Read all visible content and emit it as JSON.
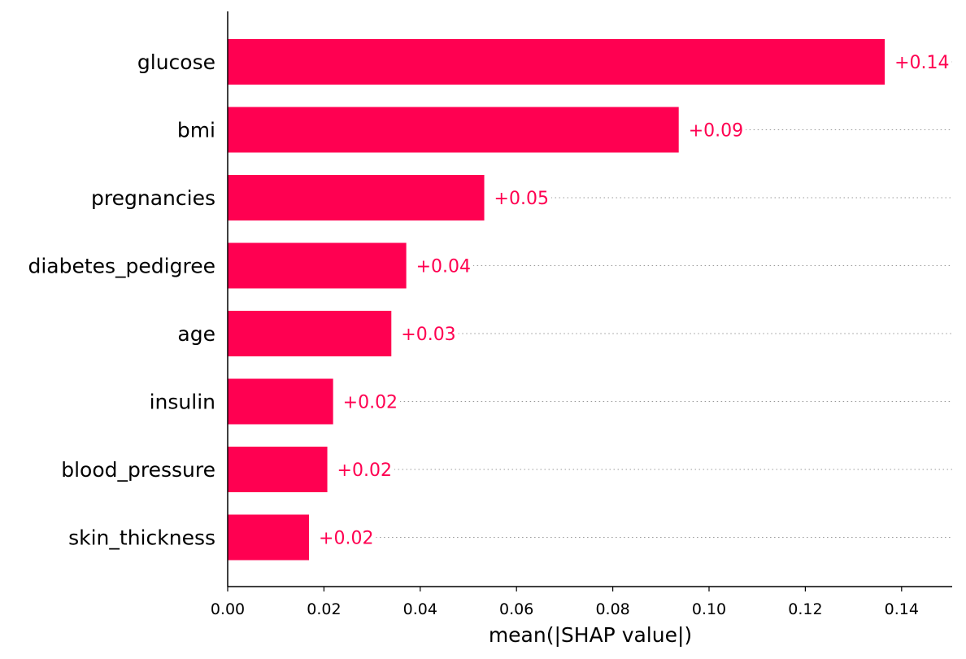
{
  "chart_data": {
    "type": "bar",
    "orientation": "horizontal",
    "title": "",
    "xlabel": "mean(|SHAP value|)",
    "ylabel": "",
    "xlim": [
      0,
      0.15
    ],
    "xticks": [
      0.0,
      0.02,
      0.04,
      0.06,
      0.08,
      0.1,
      0.12,
      0.14
    ],
    "xtick_labels": [
      "0.00",
      "0.02",
      "0.04",
      "0.06",
      "0.08",
      "0.10",
      "0.12",
      "0.14"
    ],
    "grid": "dotted horizontal guide lines per row",
    "legend": "none",
    "bar_color": "#ff0051",
    "value_label_color": "#ff0051",
    "categories": [
      "glucose",
      "bmi",
      "pregnancies",
      "diabetes_pedigree",
      "age",
      "insulin",
      "blood_pressure",
      "skin_thickness"
    ],
    "values": [
      0.1365,
      0.0937,
      0.0533,
      0.0371,
      0.034,
      0.0219,
      0.0207,
      0.0169
    ],
    "value_labels": [
      "+0.14",
      "+0.09",
      "+0.05",
      "+0.04",
      "+0.03",
      "+0.02",
      "+0.02",
      "+0.02"
    ]
  }
}
